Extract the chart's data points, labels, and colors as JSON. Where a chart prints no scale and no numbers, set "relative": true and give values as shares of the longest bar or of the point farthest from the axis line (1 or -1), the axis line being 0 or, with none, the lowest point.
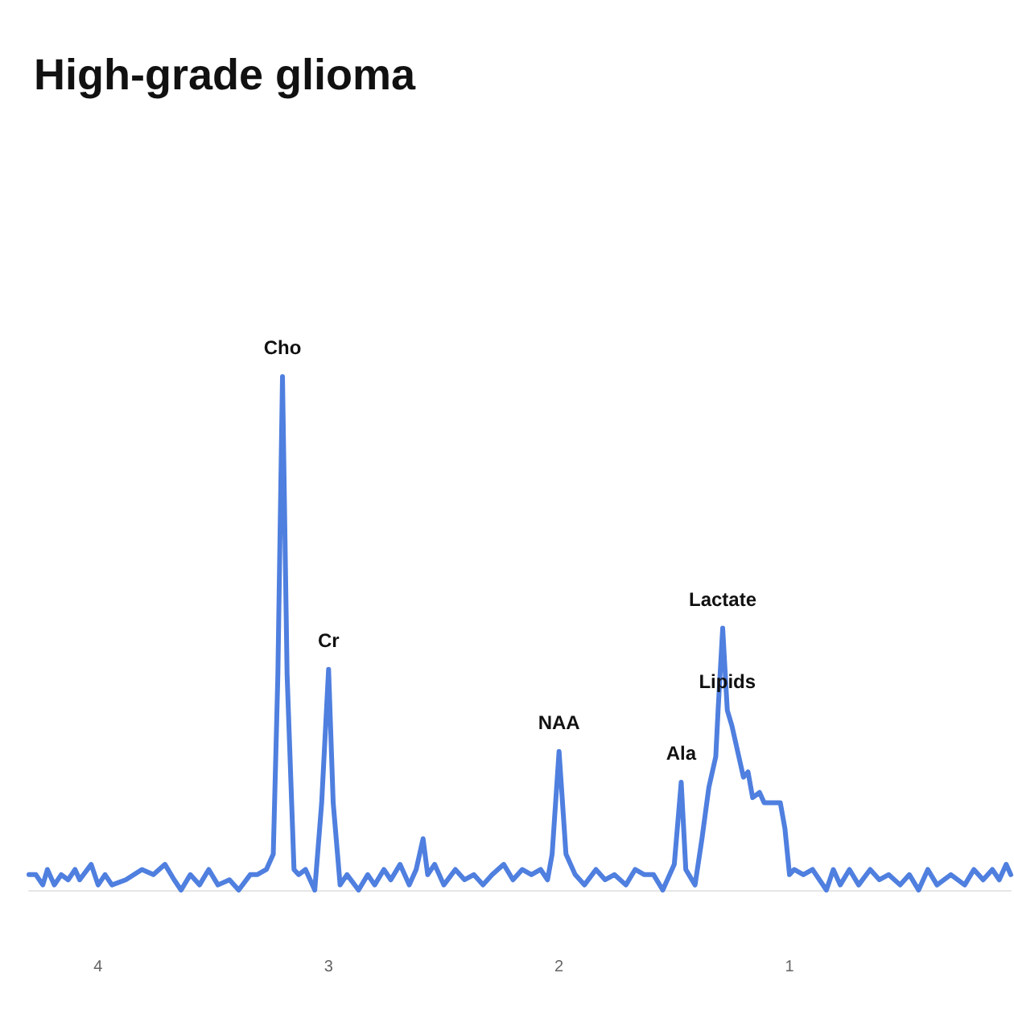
{
  "chart_data": {
    "type": "line",
    "title": "High-grade glioma",
    "relative": true,
    "xlim": [
      4.3,
      0.04
    ],
    "xticks": [
      4,
      3,
      2,
      1
    ],
    "grid": false,
    "marker": "none",
    "line_style": "solid",
    "annotations": [
      {
        "text": "Cho",
        "x": 3.2,
        "y": 1.0
      },
      {
        "text": "Cr",
        "x": 3.0,
        "y": 0.43
      },
      {
        "text": "NAA",
        "x": 2.0,
        "y": 0.27
      },
      {
        "text": "Ala",
        "x": 1.47,
        "y": 0.21
      },
      {
        "text": "Lactate",
        "x": 1.29,
        "y": 0.51
      },
      {
        "text": "Lipids",
        "x": 1.27,
        "y": 0.35
      }
    ],
    "series": [
      {
        "color": "#4f7fdf",
        "x": [
          4.3,
          4.27,
          4.24,
          4.22,
          4.19,
          4.16,
          4.13,
          4.1,
          4.08,
          4.03,
          4.0,
          3.97,
          3.94,
          3.88,
          3.81,
          3.76,
          3.71,
          3.67,
          3.64,
          3.6,
          3.56,
          3.52,
          3.48,
          3.43,
          3.39,
          3.34,
          3.31,
          3.27,
          3.24,
          3.22,
          3.2,
          3.18,
          3.15,
          3.13,
          3.1,
          3.06,
          3.03,
          3.0,
          2.98,
          2.95,
          2.92,
          2.87,
          2.83,
          2.8,
          2.76,
          2.73,
          2.69,
          2.65,
          2.62,
          2.59,
          2.57,
          2.54,
          2.5,
          2.45,
          2.41,
          2.37,
          2.33,
          2.29,
          2.24,
          2.2,
          2.16,
          2.12,
          2.08,
          2.05,
          2.03,
          2.0,
          1.97,
          1.93,
          1.89,
          1.84,
          1.8,
          1.76,
          1.71,
          1.67,
          1.63,
          1.59,
          1.55,
          1.5,
          1.47,
          1.45,
          1.41,
          1.38,
          1.35,
          1.32,
          1.31,
          1.29,
          1.27,
          1.25,
          1.22,
          1.2,
          1.18,
          1.16,
          1.13,
          1.11,
          1.07,
          1.04,
          1.02,
          1.0,
          0.98,
          0.94,
          0.9,
          0.84,
          0.81,
          0.78,
          0.74,
          0.7,
          0.65,
          0.61,
          0.57,
          0.52,
          0.48,
          0.44,
          0.4,
          0.36,
          0.3,
          0.24,
          0.2,
          0.16,
          0.12,
          0.09,
          0.06,
          0.04
        ],
        "values": [
          0.03,
          0.03,
          0.01,
          0.04,
          0.01,
          0.03,
          0.02,
          0.04,
          0.02,
          0.05,
          0.01,
          0.03,
          0.01,
          0.02,
          0.04,
          0.03,
          0.05,
          0.02,
          0.0,
          0.03,
          0.01,
          0.04,
          0.01,
          0.02,
          0.0,
          0.03,
          0.03,
          0.04,
          0.07,
          0.42,
          1.0,
          0.42,
          0.04,
          0.03,
          0.04,
          0.0,
          0.17,
          0.43,
          0.17,
          0.01,
          0.03,
          0.0,
          0.03,
          0.01,
          0.04,
          0.02,
          0.05,
          0.01,
          0.04,
          0.1,
          0.03,
          0.05,
          0.01,
          0.04,
          0.02,
          0.03,
          0.01,
          0.03,
          0.05,
          0.02,
          0.04,
          0.03,
          0.04,
          0.02,
          0.07,
          0.27,
          0.07,
          0.03,
          0.01,
          0.04,
          0.02,
          0.03,
          0.01,
          0.04,
          0.03,
          0.03,
          0.0,
          0.05,
          0.21,
          0.04,
          0.01,
          0.1,
          0.2,
          0.26,
          0.35,
          0.51,
          0.35,
          0.32,
          0.26,
          0.22,
          0.23,
          0.18,
          0.19,
          0.17,
          0.17,
          0.17,
          0.12,
          0.03,
          0.04,
          0.03,
          0.04,
          0.0,
          0.04,
          0.01,
          0.04,
          0.01,
          0.04,
          0.02,
          0.03,
          0.01,
          0.03,
          0.0,
          0.04,
          0.01,
          0.03,
          0.01,
          0.04,
          0.02,
          0.04,
          0.02,
          0.05,
          0.03
        ]
      }
    ]
  }
}
